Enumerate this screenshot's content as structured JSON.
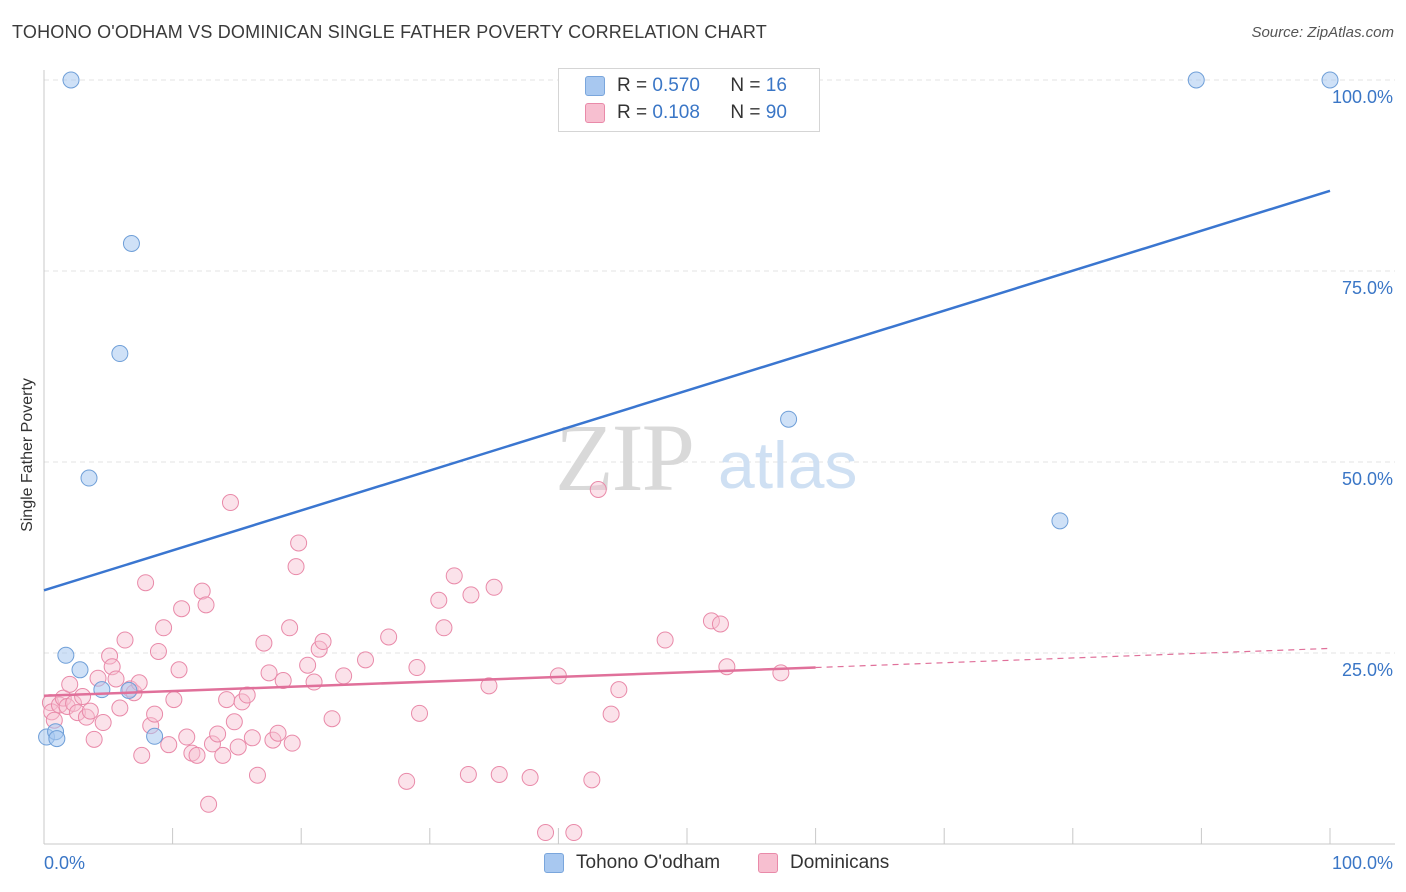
{
  "title": "TOHONO O'ODHAM VS DOMINICAN SINGLE FATHER POVERTY CORRELATION CHART",
  "source": "Source: ZipAtlas.com",
  "watermark": {
    "zip": "ZIP",
    "atlas": "atlas"
  },
  "legend": {
    "r_label": "R = ",
    "n_label": "N = ",
    "series": [
      {
        "name": "Tohono O'odham",
        "r": "0.570",
        "n": "16",
        "color": "#a8c8f0",
        "stroke": "#7aa6dc"
      },
      {
        "name": "Dominicans",
        "r": "0.108",
        "n": "90",
        "color": "#f7bfd0",
        "stroke": "#e98aa9"
      }
    ]
  },
  "chart_data": {
    "type": "scatter",
    "title": "TOHONO O'ODHAM VS DOMINICAN SINGLE FATHER POVERTY CORRELATION CHART",
    "xlabel": "",
    "ylabel": "Single Father Poverty",
    "xlim": [
      0,
      100
    ],
    "ylim": [
      0,
      100
    ],
    "x_tick_labels": [
      "0.0%",
      "100.0%"
    ],
    "y_ticks": [
      25,
      50,
      75,
      100
    ],
    "y_tick_labels": [
      "25.0%",
      "50.0%",
      "75.0%",
      "100.0%"
    ],
    "grid": true,
    "series": [
      {
        "name": "Tohono O'odham",
        "color": "#a8c8f0",
        "line_color": "#3a76d0",
        "trend": {
          "x": [
            0,
            100
          ],
          "y": [
            33.2,
            85.5
          ]
        },
        "points": [
          [
            0.2,
            14
          ],
          [
            0.9,
            14.7
          ],
          [
            1.0,
            13.8
          ],
          [
            1.7,
            24.7
          ],
          [
            2.8,
            22.8
          ],
          [
            3.5,
            47.9
          ],
          [
            4.5,
            20.2
          ],
          [
            5.9,
            64.2
          ],
          [
            6.6,
            20.1
          ],
          [
            6.8,
            78.6
          ],
          [
            8.6,
            14.1
          ],
          [
            2.1,
            100
          ],
          [
            57.9,
            55.6
          ],
          [
            79.0,
            42.3
          ],
          [
            89.6,
            100
          ],
          [
            100,
            100
          ]
        ]
      },
      {
        "name": "Dominicans",
        "color": "#f7bfd0",
        "line_color": "#e0709a",
        "trend": {
          "x": [
            0,
            60
          ],
          "y": [
            19.4,
            23.1
          ]
        },
        "trend_dashed": {
          "x": [
            60,
            100
          ],
          "y": [
            23.1,
            25.6
          ]
        },
        "points": [
          [
            0.5,
            18.5
          ],
          [
            0.6,
            17.3
          ],
          [
            0.8,
            16.2
          ],
          [
            1.2,
            18.2
          ],
          [
            1.5,
            19.1
          ],
          [
            1.8,
            18.0
          ],
          [
            2.0,
            20.9
          ],
          [
            2.3,
            18.4
          ],
          [
            2.6,
            17.2
          ],
          [
            3.0,
            19.3
          ],
          [
            3.3,
            16.6
          ],
          [
            3.6,
            17.4
          ],
          [
            3.9,
            13.7
          ],
          [
            4.2,
            21.7
          ],
          [
            4.6,
            15.9
          ],
          [
            5.1,
            24.6
          ],
          [
            5.3,
            23.2
          ],
          [
            5.6,
            21.6
          ],
          [
            5.9,
            17.8
          ],
          [
            6.3,
            26.7
          ],
          [
            6.7,
            20.3
          ],
          [
            7.0,
            19.8
          ],
          [
            7.4,
            21.1
          ],
          [
            7.6,
            11.6
          ],
          [
            7.9,
            34.2
          ],
          [
            8.3,
            15.5
          ],
          [
            8.6,
            17.0
          ],
          [
            8.9,
            25.2
          ],
          [
            9.3,
            28.3
          ],
          [
            9.7,
            13.0
          ],
          [
            10.1,
            18.9
          ],
          [
            10.5,
            22.8
          ],
          [
            10.7,
            30.8
          ],
          [
            11.1,
            14.0
          ],
          [
            11.5,
            11.9
          ],
          [
            11.9,
            11.6
          ],
          [
            12.3,
            33.1
          ],
          [
            12.6,
            31.3
          ],
          [
            12.8,
            5.2
          ],
          [
            13.1,
            13.1
          ],
          [
            13.5,
            14.4
          ],
          [
            13.9,
            11.6
          ],
          [
            14.2,
            18.9
          ],
          [
            14.5,
            44.7
          ],
          [
            14.8,
            16.0
          ],
          [
            15.1,
            12.7
          ],
          [
            15.4,
            18.6
          ],
          [
            15.8,
            19.5
          ],
          [
            16.2,
            13.9
          ],
          [
            16.6,
            9.0
          ],
          [
            17.1,
            26.3
          ],
          [
            17.5,
            22.4
          ],
          [
            17.8,
            13.6
          ],
          [
            18.2,
            14.5
          ],
          [
            18.6,
            21.4
          ],
          [
            19.1,
            28.3
          ],
          [
            19.3,
            13.2
          ],
          [
            19.6,
            36.3
          ],
          [
            19.8,
            39.4
          ],
          [
            20.5,
            23.4
          ],
          [
            21.0,
            21.2
          ],
          [
            21.4,
            25.5
          ],
          [
            21.7,
            26.5
          ],
          [
            22.4,
            16.4
          ],
          [
            23.3,
            22.0
          ],
          [
            25.0,
            24.1
          ],
          [
            26.8,
            27.1
          ],
          [
            28.2,
            8.2
          ],
          [
            29.0,
            23.1
          ],
          [
            29.2,
            17.1
          ],
          [
            30.7,
            31.9
          ],
          [
            31.1,
            28.3
          ],
          [
            31.9,
            35.1
          ],
          [
            33.0,
            9.1
          ],
          [
            33.2,
            32.6
          ],
          [
            34.6,
            20.7
          ],
          [
            35.0,
            33.6
          ],
          [
            35.4,
            9.1
          ],
          [
            37.8,
            8.7
          ],
          [
            39.0,
            1.5
          ],
          [
            40.0,
            22.0
          ],
          [
            41.2,
            1.5
          ],
          [
            42.6,
            8.4
          ],
          [
            43.1,
            46.4
          ],
          [
            44.1,
            17.0
          ],
          [
            44.7,
            20.2
          ],
          [
            48.3,
            26.7
          ],
          [
            51.9,
            29.2
          ],
          [
            52.6,
            28.8
          ],
          [
            53.1,
            23.2
          ],
          [
            57.3,
            22.4
          ]
        ]
      }
    ]
  }
}
